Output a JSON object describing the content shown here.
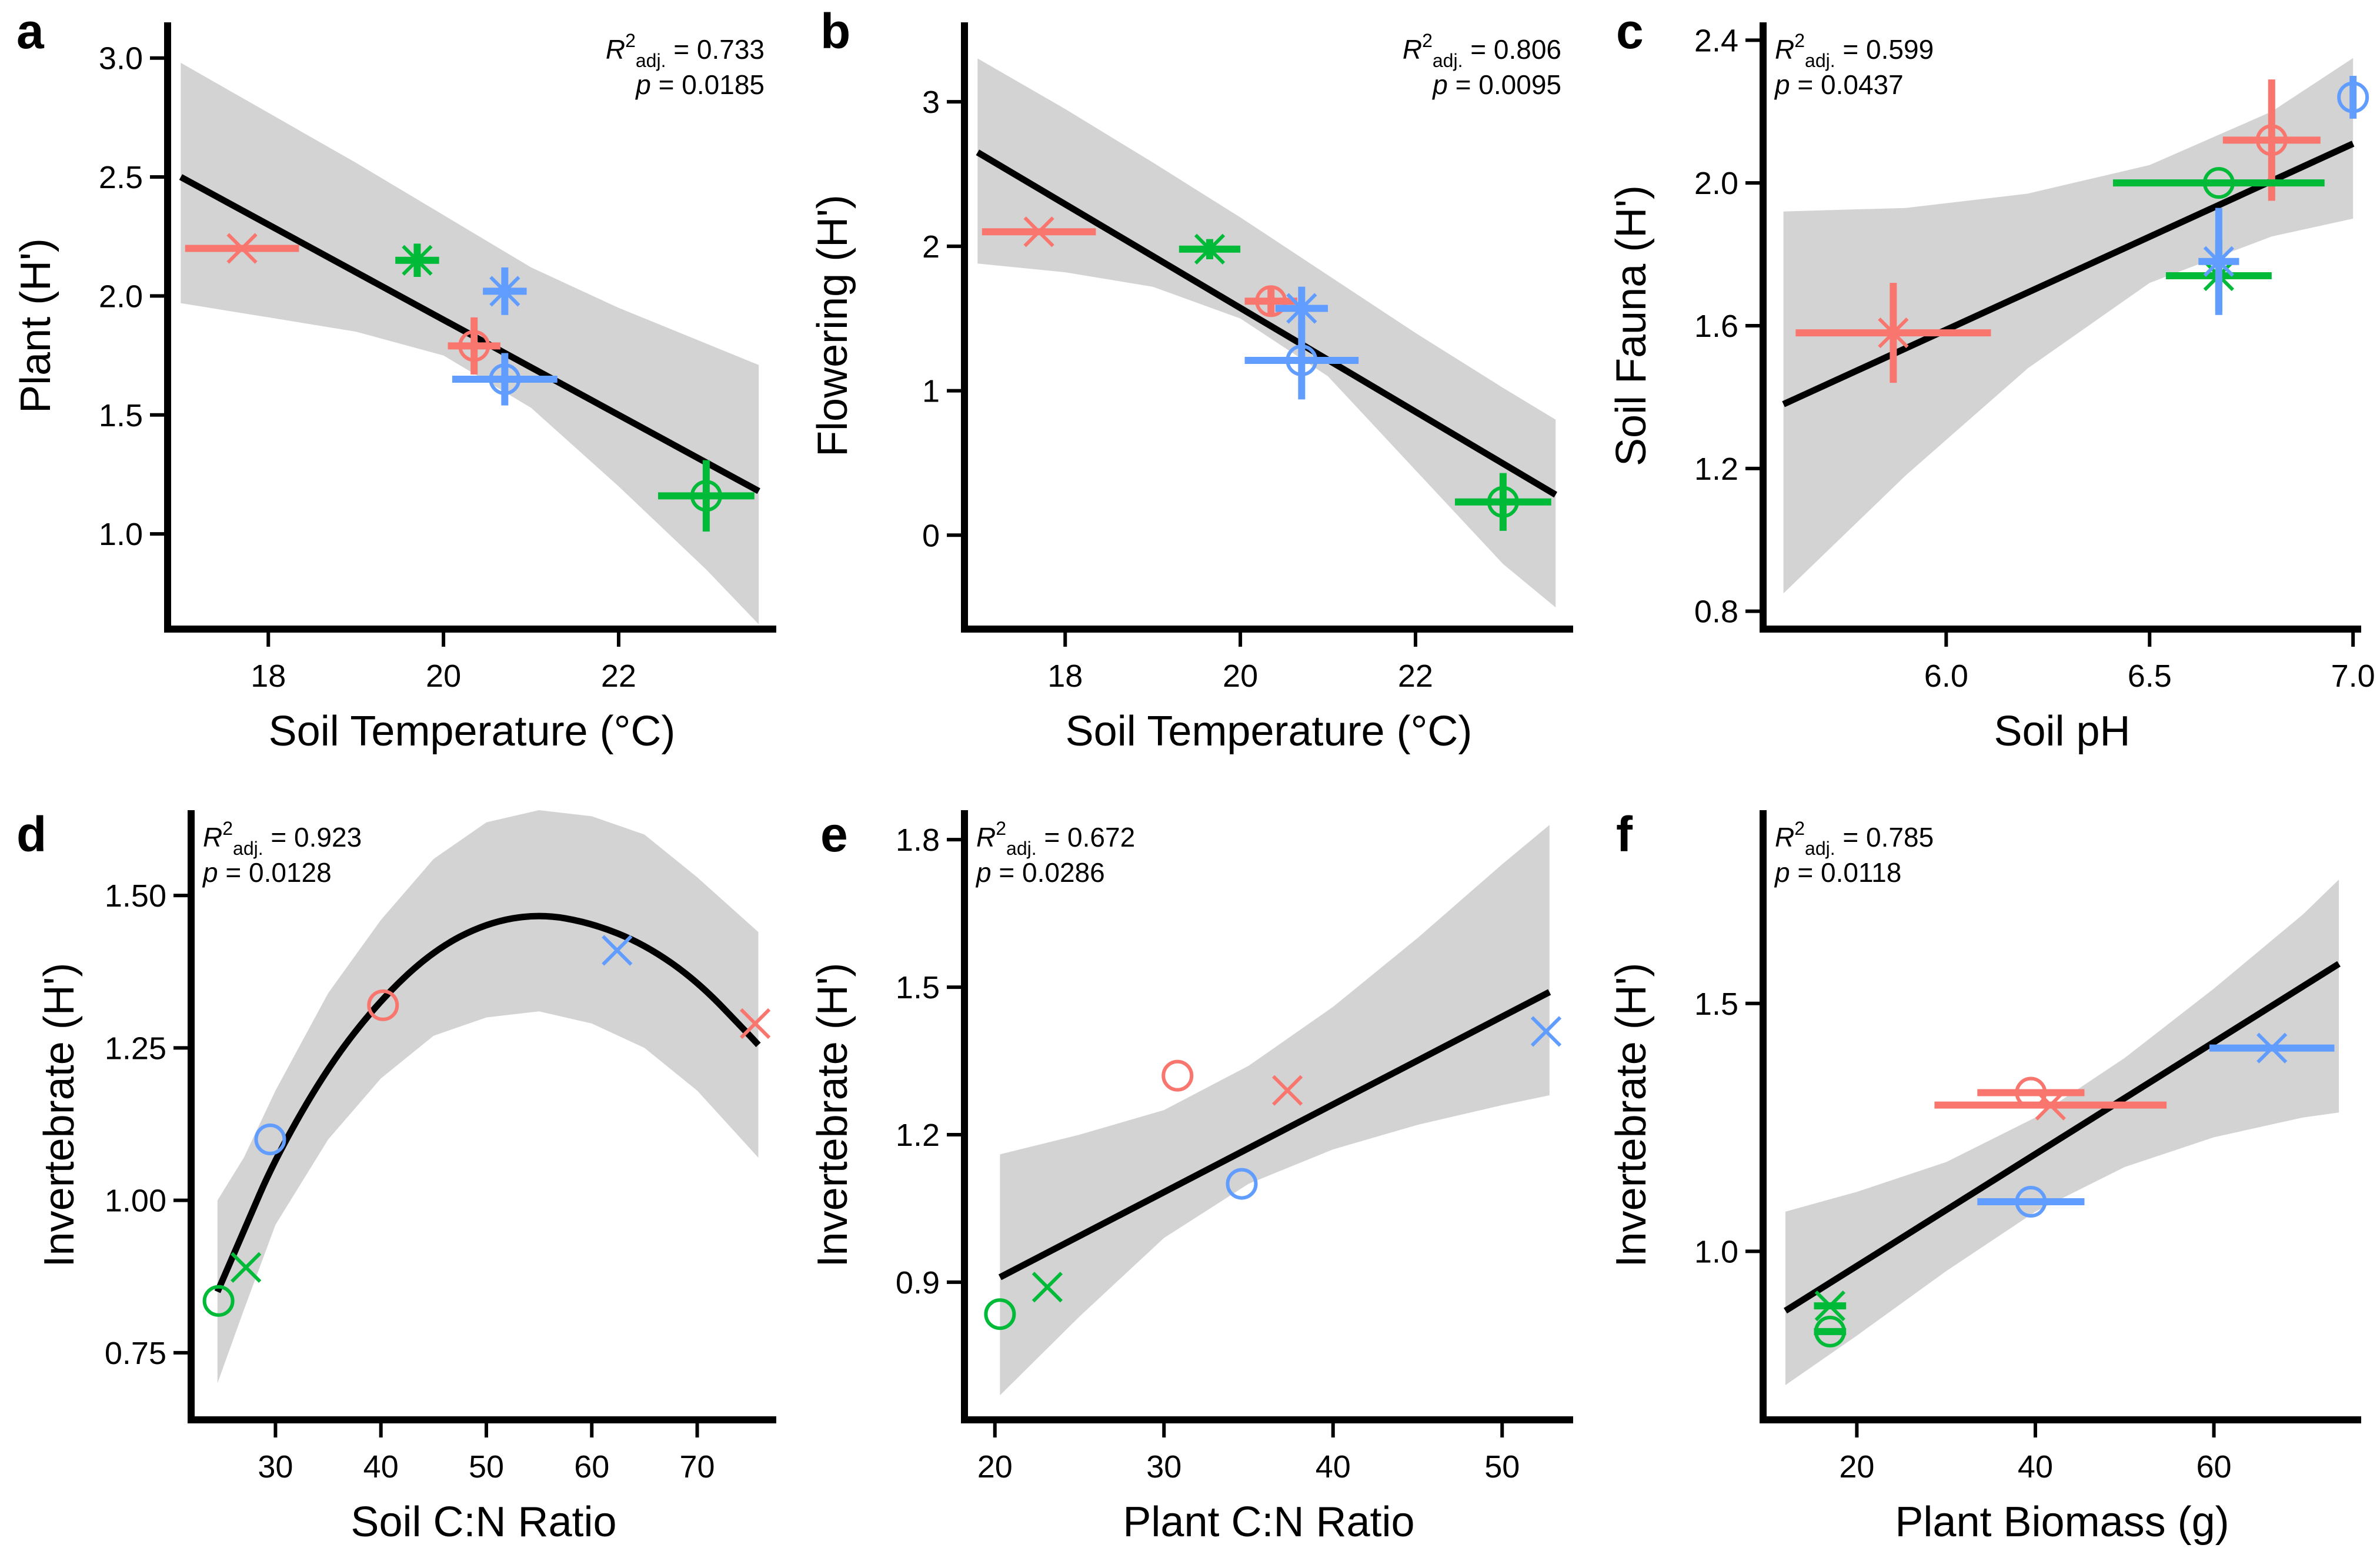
{
  "colors": {
    "red": "#F8766D",
    "green": "#00BA38",
    "blue": "#619CFF",
    "band": "#d3d3d3",
    "line": "#000000"
  },
  "chart_data": [
    {
      "id": "a",
      "letter": "a",
      "type": "scatter",
      "xlabel": "Soil Temperature (°C)",
      "ylabel": "Plant (H')",
      "xlim": [
        16.85,
        23.8
      ],
      "ylim": [
        0.6,
        3.15
      ],
      "xticks": [
        18,
        20,
        22
      ],
      "xtick_labels": [
        "18",
        "20",
        "22"
      ],
      "yticks": [
        1.0,
        1.5,
        2.0,
        2.5,
        3.0
      ],
      "ytick_labels": [
        "1.0",
        "1.5",
        "2.0",
        "2.5",
        "3.0"
      ],
      "annot_r2": "0.733",
      "annot_p": "0.0185",
      "annot_side": "right",
      "fit": "linear",
      "fit_x": [
        17.0,
        23.6
      ],
      "fit_y": [
        2.5,
        1.18
      ],
      "band_upper": [
        [
          17.0,
          2.98
        ],
        [
          18.0,
          2.77
        ],
        [
          19.0,
          2.56
        ],
        [
          20.0,
          2.34
        ],
        [
          21.0,
          2.12
        ],
        [
          22.0,
          1.95
        ],
        [
          23.0,
          1.8
        ],
        [
          23.6,
          1.71
        ]
      ],
      "band_lower": [
        [
          17.0,
          1.97
        ],
        [
          18.0,
          1.91
        ],
        [
          19.0,
          1.85
        ],
        [
          20.0,
          1.75
        ],
        [
          21.0,
          1.53
        ],
        [
          22.0,
          1.2
        ],
        [
          23.0,
          0.85
        ],
        [
          23.6,
          0.62
        ]
      ],
      "points": [
        {
          "color": "red",
          "marker": "x",
          "x": 17.7,
          "y": 2.2,
          "xerr": 0.65,
          "yerr": 0.0
        },
        {
          "color": "red",
          "marker": "o",
          "x": 20.35,
          "y": 1.79,
          "xerr": 0.3,
          "yerr": 0.12
        },
        {
          "color": "green",
          "marker": "x",
          "x": 19.7,
          "y": 2.15,
          "xerr": 0.25,
          "yerr": 0.07
        },
        {
          "color": "green",
          "marker": "o",
          "x": 23.0,
          "y": 1.16,
          "xerr": 0.55,
          "yerr": 0.15
        },
        {
          "color": "blue",
          "marker": "x",
          "x": 20.7,
          "y": 2.02,
          "xerr": 0.25,
          "yerr": 0.1
        },
        {
          "color": "blue",
          "marker": "o",
          "x": 20.7,
          "y": 1.65,
          "xerr": 0.6,
          "yerr": 0.11
        }
      ]
    },
    {
      "id": "b",
      "letter": "b",
      "type": "scatter",
      "xlabel": "Soil Temperature (°C)",
      "ylabel": "Flowering (H')",
      "xlim": [
        16.85,
        23.8
      ],
      "ylim": [
        -0.65,
        3.55
      ],
      "xticks": [
        18,
        20,
        22
      ],
      "xtick_labels": [
        "18",
        "20",
        "22"
      ],
      "yticks": [
        0,
        1,
        2,
        3
      ],
      "ytick_labels": [
        "0",
        "1",
        "2",
        "3"
      ],
      "annot_r2": "0.806",
      "annot_p": "0.0095",
      "annot_side": "right",
      "fit": "linear",
      "fit_x": [
        17.0,
        23.6
      ],
      "fit_y": [
        2.65,
        0.28
      ],
      "band_upper": [
        [
          17.0,
          3.3
        ],
        [
          18.0,
          2.95
        ],
        [
          19.0,
          2.58
        ],
        [
          20.0,
          2.2
        ],
        [
          21.0,
          1.8
        ],
        [
          22.0,
          1.4
        ],
        [
          23.0,
          1.02
        ],
        [
          23.6,
          0.8
        ]
      ],
      "band_lower": [
        [
          17.0,
          1.88
        ],
        [
          18.0,
          1.82
        ],
        [
          19.0,
          1.72
        ],
        [
          20.0,
          1.5
        ],
        [
          21.0,
          1.1
        ],
        [
          22.0,
          0.45
        ],
        [
          23.0,
          -0.2
        ],
        [
          23.6,
          -0.5
        ]
      ],
      "points": [
        {
          "color": "red",
          "marker": "x",
          "x": 17.7,
          "y": 2.1,
          "xerr": 0.65,
          "yerr": 0.0
        },
        {
          "color": "red",
          "marker": "o",
          "x": 20.35,
          "y": 1.62,
          "xerr": 0.3,
          "yerr": 0.1
        },
        {
          "color": "green",
          "marker": "x",
          "x": 19.65,
          "y": 1.98,
          "xerr": 0.35,
          "yerr": 0.07
        },
        {
          "color": "green",
          "marker": "o",
          "x": 23.0,
          "y": 0.23,
          "xerr": 0.55,
          "yerr": 0.2
        },
        {
          "color": "blue",
          "marker": "x",
          "x": 20.7,
          "y": 1.57,
          "xerr": 0.3,
          "yerr": 0.15
        },
        {
          "color": "blue",
          "marker": "o",
          "x": 20.7,
          "y": 1.21,
          "xerr": 0.65,
          "yerr": 0.27
        }
      ]
    },
    {
      "id": "c",
      "letter": "c",
      "type": "scatter",
      "xlabel": "Soil pH",
      "ylabel": "Soil Fauna (H')",
      "xlim": [
        5.55,
        7.02
      ],
      "ylim": [
        0.75,
        2.45
      ],
      "xticks": [
        6.0,
        6.5,
        7.0
      ],
      "xtick_labels": [
        "6.0",
        "6.5",
        "7.0"
      ],
      "yticks": [
        0.8,
        1.2,
        1.6,
        2.0,
        2.4
      ],
      "ytick_labels": [
        "0.8",
        "1.2",
        "1.6",
        "2.0",
        "2.4"
      ],
      "annot_r2": "0.599",
      "annot_p": "0.0437",
      "annot_side": "left",
      "fit": "linear",
      "fit_x": [
        5.6,
        7.0
      ],
      "fit_y": [
        1.38,
        2.11
      ],
      "band_upper": [
        [
          5.6,
          1.92
        ],
        [
          5.9,
          1.93
        ],
        [
          6.2,
          1.97
        ],
        [
          6.5,
          2.05
        ],
        [
          6.8,
          2.2
        ],
        [
          7.0,
          2.35
        ]
      ],
      "band_lower": [
        [
          5.6,
          0.85
        ],
        [
          5.9,
          1.18
        ],
        [
          6.2,
          1.48
        ],
        [
          6.5,
          1.72
        ],
        [
          6.8,
          1.85
        ],
        [
          7.0,
          1.9
        ]
      ],
      "points": [
        {
          "color": "red",
          "marker": "x",
          "x": 5.87,
          "y": 1.58,
          "xerr": 0.24,
          "yerr": 0.14
        },
        {
          "color": "red",
          "marker": "o",
          "x": 6.8,
          "y": 2.12,
          "xerr": 0.12,
          "yerr": 0.17
        },
        {
          "color": "green",
          "marker": "x",
          "x": 6.67,
          "y": 1.74,
          "xerr": 0.13,
          "yerr": 0.1
        },
        {
          "color": "green",
          "marker": "o",
          "x": 6.67,
          "y": 2.0,
          "xerr": 0.26,
          "yerr": 0.0
        },
        {
          "color": "blue",
          "marker": "x",
          "x": 6.67,
          "y": 1.78,
          "xerr": 0.05,
          "yerr": 0.15
        },
        {
          "color": "blue",
          "marker": "o",
          "x": 7.0,
          "y": 2.24,
          "xerr": 0.0,
          "yerr": 0.06
        }
      ]
    },
    {
      "id": "d",
      "letter": "d",
      "type": "scatter",
      "xlabel": "Soil C:N Ratio",
      "ylabel": "Invertebrate (H')",
      "xlim": [
        22.0,
        77.5
      ],
      "ylim": [
        0.64,
        1.64
      ],
      "xticks": [
        30,
        40,
        50,
        60,
        70
      ],
      "xtick_labels": [
        "30",
        "40",
        "50",
        "60",
        "70"
      ],
      "yticks": [
        0.75,
        1.0,
        1.25,
        1.5
      ],
      "ytick_labels": [
        "0.75",
        "1.00",
        "1.25",
        "1.50"
      ],
      "annot_r2": "0.923",
      "annot_p": "0.0128",
      "annot_side": "left",
      "fit": "quadratic",
      "fit_curve": [
        [
          24.5,
          0.85
        ],
        [
          27.0,
          0.95
        ],
        [
          30.0,
          1.07
        ],
        [
          35.0,
          1.22
        ],
        [
          40.0,
          1.33
        ],
        [
          45.0,
          1.41
        ],
        [
          50.0,
          1.455
        ],
        [
          55.0,
          1.47
        ],
        [
          60.0,
          1.455
        ],
        [
          65.0,
          1.42
        ],
        [
          70.0,
          1.36
        ],
        [
          75.0,
          1.27
        ],
        [
          75.8,
          1.255
        ]
      ],
      "band_upper": [
        [
          24.5,
          1.0
        ],
        [
          27.0,
          1.07
        ],
        [
          30.0,
          1.18
        ],
        [
          35.0,
          1.34
        ],
        [
          40.0,
          1.46
        ],
        [
          45.0,
          1.56
        ],
        [
          50.0,
          1.62
        ],
        [
          55.0,
          1.64
        ],
        [
          60.0,
          1.63
        ],
        [
          65.0,
          1.6
        ],
        [
          70.0,
          1.53
        ],
        [
          75.8,
          1.44
        ]
      ],
      "band_lower": [
        [
          24.5,
          0.7
        ],
        [
          27.0,
          0.82
        ],
        [
          30.0,
          0.96
        ],
        [
          35.0,
          1.1
        ],
        [
          40.0,
          1.2
        ],
        [
          45.0,
          1.27
        ],
        [
          50.0,
          1.3
        ],
        [
          55.0,
          1.31
        ],
        [
          60.0,
          1.29
        ],
        [
          65.0,
          1.25
        ],
        [
          70.0,
          1.18
        ],
        [
          75.8,
          1.07
        ]
      ],
      "points": [
        {
          "color": "red",
          "marker": "x",
          "x": 75.5,
          "y": 1.29,
          "xerr": 0,
          "yerr": 0
        },
        {
          "color": "red",
          "marker": "o",
          "x": 40.2,
          "y": 1.32,
          "xerr": 0,
          "yerr": 0
        },
        {
          "color": "green",
          "marker": "x",
          "x": 27.2,
          "y": 0.89,
          "xerr": 0,
          "yerr": 0
        },
        {
          "color": "green",
          "marker": "o",
          "x": 24.6,
          "y": 0.835,
          "xerr": 0,
          "yerr": 0
        },
        {
          "color": "blue",
          "marker": "x",
          "x": 62.4,
          "y": 1.41,
          "xerr": 0,
          "yerr": 0
        },
        {
          "color": "blue",
          "marker": "o",
          "x": 29.5,
          "y": 1.1,
          "xerr": 0,
          "yerr": 0
        }
      ]
    },
    {
      "id": "e",
      "letter": "e",
      "type": "scatter",
      "xlabel": "Plant C:N Ratio",
      "ylabel": "Invertebrate (H')",
      "xlim": [
        18.2,
        54.2
      ],
      "ylim": [
        0.62,
        1.86
      ],
      "xticks": [
        20,
        30,
        40,
        50
      ],
      "xtick_labels": [
        "20",
        "30",
        "40",
        "50"
      ],
      "yticks": [
        0.9,
        1.2,
        1.5,
        1.8
      ],
      "ytick_labels": [
        "0.9",
        "1.2",
        "1.5",
        "1.8"
      ],
      "annot_r2": "0.672",
      "annot_p": "0.0286",
      "annot_side": "left",
      "fit": "linear",
      "fit_x": [
        20.3,
        52.8
      ],
      "fit_y": [
        0.91,
        1.49
      ],
      "band_upper": [
        [
          20.3,
          1.16
        ],
        [
          25.0,
          1.2
        ],
        [
          30.0,
          1.25
        ],
        [
          35.0,
          1.34
        ],
        [
          40.0,
          1.46
        ],
        [
          45.0,
          1.6
        ],
        [
          50.0,
          1.75
        ],
        [
          52.8,
          1.83
        ]
      ],
      "band_lower": [
        [
          20.3,
          0.67
        ],
        [
          25.0,
          0.83
        ],
        [
          30.0,
          0.99
        ],
        [
          35.0,
          1.1
        ],
        [
          40.0,
          1.17
        ],
        [
          45.0,
          1.22
        ],
        [
          50.0,
          1.26
        ],
        [
          52.8,
          1.28
        ]
      ],
      "points": [
        {
          "color": "red",
          "marker": "x",
          "x": 37.3,
          "y": 1.29,
          "xerr": 0,
          "yerr": 0
        },
        {
          "color": "red",
          "marker": "o",
          "x": 30.8,
          "y": 1.32,
          "xerr": 0,
          "yerr": 0
        },
        {
          "color": "green",
          "marker": "x",
          "x": 23.1,
          "y": 0.89,
          "xerr": 0,
          "yerr": 0
        },
        {
          "color": "green",
          "marker": "o",
          "x": 20.3,
          "y": 0.835,
          "xerr": 0,
          "yerr": 0
        },
        {
          "color": "blue",
          "marker": "x",
          "x": 52.6,
          "y": 1.41,
          "xerr": 0,
          "yerr": 0
        },
        {
          "color": "blue",
          "marker": "o",
          "x": 34.6,
          "y": 1.1,
          "xerr": 0,
          "yerr": 0
        }
      ]
    },
    {
      "id": "f",
      "letter": "f",
      "type": "scatter",
      "xlabel": "Plant Biomass (g)",
      "ylabel": "Invertebrate (H')",
      "xlim": [
        9.5,
        76.5
      ],
      "ylim": [
        0.66,
        1.89
      ],
      "xticks": [
        20,
        40,
        60
      ],
      "xtick_labels": [
        "20",
        "40",
        "60"
      ],
      "yticks": [
        1.0,
        1.5
      ],
      "ytick_labels": [
        "1.0",
        "1.5"
      ],
      "annot_r2": "0.785",
      "annot_p": "0.0118",
      "annot_side": "left",
      "fit": "linear",
      "fit_x": [
        12.0,
        74.0
      ],
      "fit_y": [
        0.88,
        1.58
      ],
      "band_upper": [
        [
          12.0,
          1.08
        ],
        [
          20.0,
          1.12
        ],
        [
          30.0,
          1.18
        ],
        [
          40.0,
          1.27
        ],
        [
          50.0,
          1.39
        ],
        [
          60.0,
          1.53
        ],
        [
          70.0,
          1.68
        ],
        [
          74.0,
          1.75
        ]
      ],
      "band_lower": [
        [
          12.0,
          0.73
        ],
        [
          20.0,
          0.83
        ],
        [
          30.0,
          0.96
        ],
        [
          40.0,
          1.08
        ],
        [
          50.0,
          1.17
        ],
        [
          60.0,
          1.23
        ],
        [
          70.0,
          1.27
        ],
        [
          74.0,
          1.28
        ]
      ],
      "points": [
        {
          "color": "red",
          "marker": "x",
          "x": 41.7,
          "y": 1.295,
          "xerr": 13.0,
          "yerr": 0.0
        },
        {
          "color": "red",
          "marker": "o",
          "x": 39.5,
          "y": 1.32,
          "xerr": 6.0,
          "yerr": 0.0
        },
        {
          "color": "green",
          "marker": "x",
          "x": 17.0,
          "y": 0.89,
          "xerr": 1.8,
          "yerr": 0.0
        },
        {
          "color": "green",
          "marker": "o",
          "x": 17.0,
          "y": 0.838,
          "xerr": 1.8,
          "yerr": 0.0
        },
        {
          "color": "blue",
          "marker": "x",
          "x": 66.5,
          "y": 1.41,
          "xerr": 7.0,
          "yerr": 0.0
        },
        {
          "color": "blue",
          "marker": "o",
          "x": 39.5,
          "y": 1.1,
          "xerr": 6.0,
          "yerr": 0.0
        }
      ]
    }
  ]
}
